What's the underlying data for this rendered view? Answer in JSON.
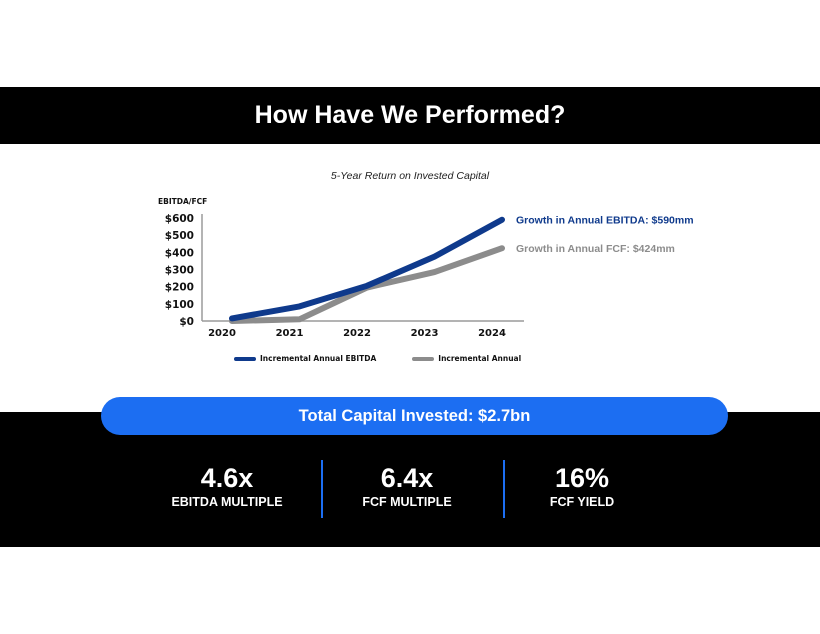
{
  "slide": {
    "title": "How Have We Performed?",
    "total_capital_label": "Total Capital Invested: $2.7bn",
    "metrics": [
      {
        "value": "4.6x",
        "label": "EBITDA MULTIPLE"
      },
      {
        "value": "6.4x",
        "label": "FCF MULTIPLE"
      },
      {
        "value": "16%",
        "label": "FCF YIELD"
      }
    ]
  },
  "colors": {
    "ebitda": "#0f3a8c",
    "fcf": "#8c8c8c",
    "accent": "#1c6ef2"
  },
  "chart_data": {
    "type": "line",
    "title": "5-Year Return on Invested Capital",
    "ylabel": "EBITDA/FCF",
    "x": [
      "2020",
      "2021",
      "2022",
      "2023",
      "2024"
    ],
    "y_ticks": [
      "$0",
      "$100",
      "$200",
      "$300",
      "$400",
      "$500",
      "$600"
    ],
    "ylim": [
      0,
      600
    ],
    "series": [
      {
        "name": "Incremental Annual EBITDA",
        "values": [
          15,
          85,
          205,
          375,
          590
        ],
        "end_annotation": "Growth in Annual EBITDA: $590mm"
      },
      {
        "name": "Incremental Annual",
        "values": [
          0,
          10,
          195,
          285,
          424
        ],
        "end_annotation": "Growth in Annual FCF: $424mm"
      }
    ],
    "legend_position": "bottom",
    "grid": false
  }
}
